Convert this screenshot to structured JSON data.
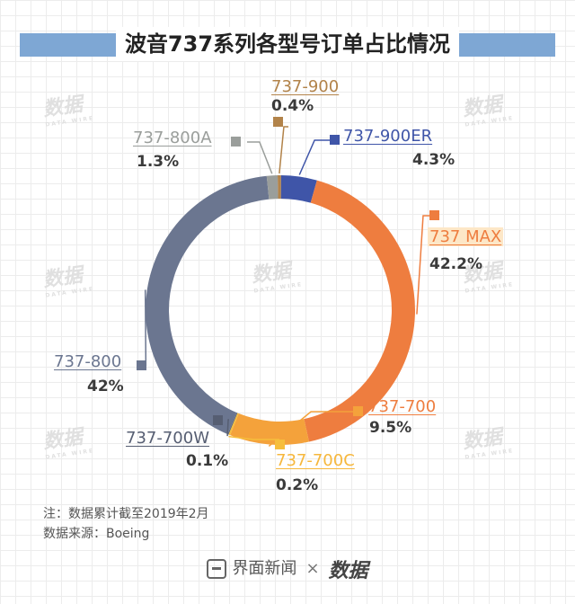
{
  "header": {
    "title": "波音737系列各型号订单占比情况"
  },
  "watermark_text": "数据",
  "watermark_sub": "DATA WIRE",
  "chart_data": {
    "type": "pie",
    "donut": true,
    "title": "波音737系列各型号订单占比情况",
    "categories": [
      "737-900ER",
      "737 MAX",
      "737-700",
      "737-700C",
      "737-700W",
      "737-800",
      "737-800A",
      "737-900"
    ],
    "values": [
      4.3,
      42.2,
      9.5,
      0.2,
      0.1,
      42,
      1.3,
      0.4
    ],
    "value_labels": [
      "4.3%",
      "42.2%",
      "9.5%",
      "0.2%",
      "0.1%",
      "42%",
      "1.3%",
      "0.4%"
    ],
    "colors": [
      "#3f55a8",
      "#ee7d3f",
      "#f4a23b",
      "#f6be3c",
      "#565e72",
      "#6b7690",
      "#9a9e9b",
      "#b2834a"
    ],
    "label_colors": [
      "#3f55a8",
      "#ee7d3f",
      "#ee7d3f",
      "#f6b73c",
      "#565e72",
      "#6b7690",
      "#9a9e9b",
      "#b2834a"
    ]
  },
  "notes": {
    "note1": "注：数据累计截至2019年2月",
    "source": "数据来源：Boeing"
  },
  "footer": {
    "brand1": "界面新闻",
    "separator": "×",
    "brand2": "数据"
  }
}
